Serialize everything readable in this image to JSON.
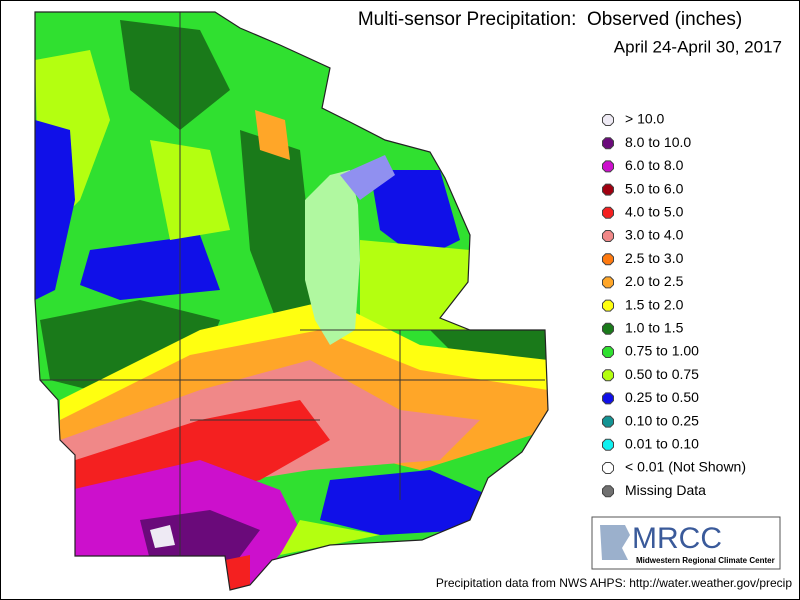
{
  "header": {
    "title": "Multi-sensor Precipitation:  Observed (inches)",
    "subtitle": "April 24-April 30, 2017"
  },
  "legend": [
    {
      "label": "> 10.0",
      "color": "#eeeaf4"
    },
    {
      "label": "8.0 to 10.0",
      "color": "#6a0a7a"
    },
    {
      "label": "6.0 to 8.0",
      "color": "#cc10cc"
    },
    {
      "label": "5.0 to 6.0",
      "color": "#a00010"
    },
    {
      "label": "4.0 to 5.0",
      "color": "#f42020"
    },
    {
      "label": "3.0 to 4.0",
      "color": "#f08888"
    },
    {
      "label": "2.5 to 3.0",
      "color": "#ff7a10"
    },
    {
      "label": "2.0 to 2.5",
      "color": "#ffa628"
    },
    {
      "label": "1.5 to 2.0",
      "color": "#ffff10"
    },
    {
      "label": "1.0 to 1.5",
      "color": "#1a7a1a"
    },
    {
      "label": "0.75 to 1.00",
      "color": "#30e030"
    },
    {
      "label": "0.50 to 0.75",
      "color": "#b4ff10"
    },
    {
      "label": "0.25 to 0.50",
      "color": "#1010e8"
    },
    {
      "label": "0.10 to 0.25",
      "color": "#149494"
    },
    {
      "label": "0.01 to 0.10",
      "color": "#10f0f0"
    },
    {
      "label": "< 0.01 (Not Shown)",
      "color": "#ffffff"
    },
    {
      "label": "Missing Data",
      "color": "#707070"
    }
  ],
  "logo": {
    "name": "MRCC",
    "full_name": "Midwestern Regional Climate Center"
  },
  "footer": "Precipitation data from NWS AHPS: http://water.weather.gov/precip"
}
